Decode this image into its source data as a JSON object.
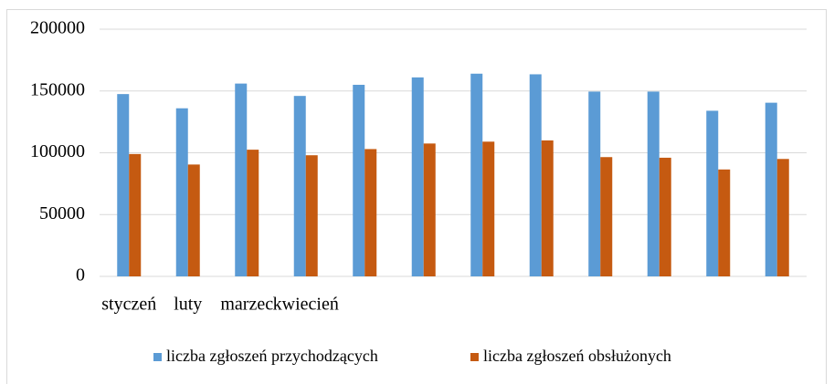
{
  "chart_data": {
    "type": "bar",
    "categories": [
      "styczeń",
      "luty",
      "marzec",
      "kwiecień",
      null,
      null,
      null,
      null,
      null,
      null,
      null,
      null
    ],
    "series": [
      {
        "name": "liczba zgłoszeń przychodzących",
        "color": "#5b9bd5",
        "values": [
          147500,
          136000,
          156000,
          146000,
          155000,
          161000,
          164000,
          163500,
          149500,
          149500,
          134000,
          140500
        ]
      },
      {
        "name": "liczba zgłoszeń obsłużonych",
        "color": "#c55a11",
        "values": [
          99000,
          90500,
          102500,
          98000,
          103000,
          107500,
          109000,
          110000,
          96500,
          96000,
          86500,
          95000
        ]
      }
    ],
    "ylim": [
      0,
      200000
    ],
    "yticks": [
      0,
      50000,
      100000,
      150000,
      200000
    ],
    "grid": true,
    "legend": "bottom"
  }
}
